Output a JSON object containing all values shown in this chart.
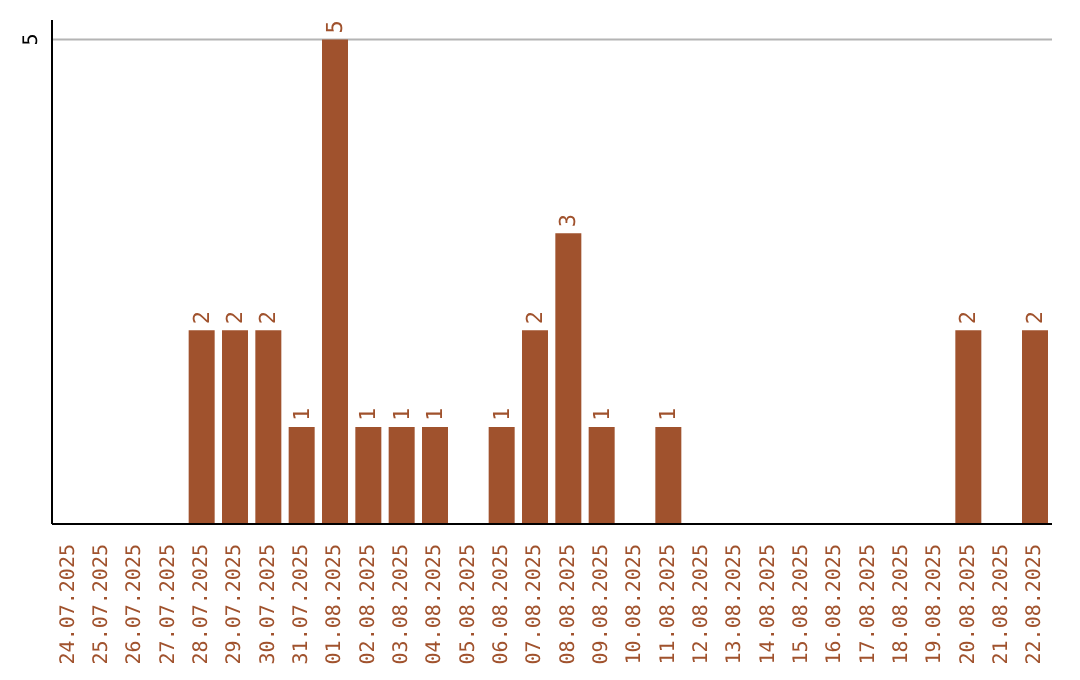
{
  "chart_data": {
    "type": "bar",
    "categories": [
      "24.07.2025",
      "25.07.2025",
      "26.07.2025",
      "27.07.2025",
      "28.07.2025",
      "29.07.2025",
      "30.07.2025",
      "31.07.2025",
      "01.08.2025",
      "02.08.2025",
      "03.08.2025",
      "04.08.2025",
      "05.08.2025",
      "06.08.2025",
      "07.08.2025",
      "08.08.2025",
      "09.08.2025",
      "10.08.2025",
      "11.08.2025",
      "12.08.2025",
      "13.08.2025",
      "14.08.2025",
      "15.08.2025",
      "16.08.2025",
      "17.08.2025",
      "18.08.2025",
      "19.08.2025",
      "20.08.2025",
      "21.08.2025",
      "22.08.2025"
    ],
    "series": [
      {
        "type": "bar",
        "color": "#a0522d",
        "values": [
          0,
          0,
          0,
          0,
          2,
          2,
          2,
          1,
          5,
          1,
          1,
          1,
          0,
          1,
          2,
          3,
          1,
          0,
          1,
          0,
          0,
          0,
          0,
          0,
          0,
          0,
          0,
          2,
          0,
          2
        ],
        "value_labels": [
          null,
          null,
          null,
          null,
          "2",
          "2",
          "2",
          "1",
          "5",
          "1",
          "1",
          "1",
          null,
          "1",
          "2",
          "3",
          "1",
          null,
          "1",
          null,
          null,
          null,
          null,
          null,
          null,
          null,
          null,
          "2",
          null,
          "2"
        ]
      }
    ],
    "ylim": [
      0,
      5.2
    ],
    "yticks": [
      5
    ],
    "grid": "y",
    "legend": false
  }
}
